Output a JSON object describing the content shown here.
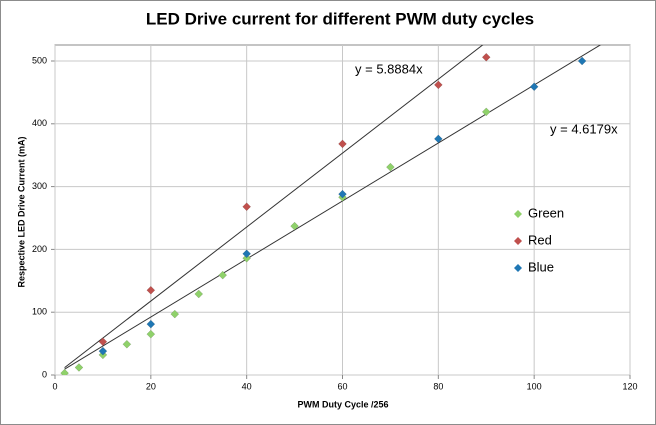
{
  "chart_data": {
    "type": "scatter",
    "title": "LED Drive current for different PWM duty cycles",
    "x_label": "PWM Duty Cycle  /256",
    "y_label": "Respective LED Drive Current (mA)",
    "xlim": [
      0,
      120
    ],
    "xticks": [
      0,
      20,
      40,
      60,
      80,
      100,
      120
    ],
    "ylim": [
      0,
      500
    ],
    "yticks": [
      0,
      100,
      200,
      300,
      400,
      500
    ],
    "grid": true,
    "legend": "right",
    "series": [
      {
        "name": "Green",
        "color": "#8fd16a",
        "x": [
          2,
          5,
          10,
          15,
          20,
          25,
          30,
          35,
          40,
          50,
          60,
          70,
          90
        ],
        "values": [
          3,
          12,
          32,
          49,
          65,
          97,
          129,
          159,
          186,
          237,
          283,
          331,
          419
        ]
      },
      {
        "name": "Red",
        "color": "#c0504d",
        "x": [
          10,
          20,
          40,
          60,
          80,
          90
        ],
        "values": [
          53,
          135,
          268,
          368,
          462,
          506
        ]
      },
      {
        "name": "Blue",
        "color": "#1f77b4",
        "x": [
          10,
          20,
          40,
          60,
          80,
          100,
          110
        ],
        "values": [
          38,
          81,
          193,
          288,
          376,
          459,
          500
        ]
      }
    ],
    "trendlines": [
      {
        "label": "y = 5.8884x",
        "slope": 5.8884
      },
      {
        "label": "y = 4.6179x",
        "slope": 4.6179
      }
    ]
  }
}
